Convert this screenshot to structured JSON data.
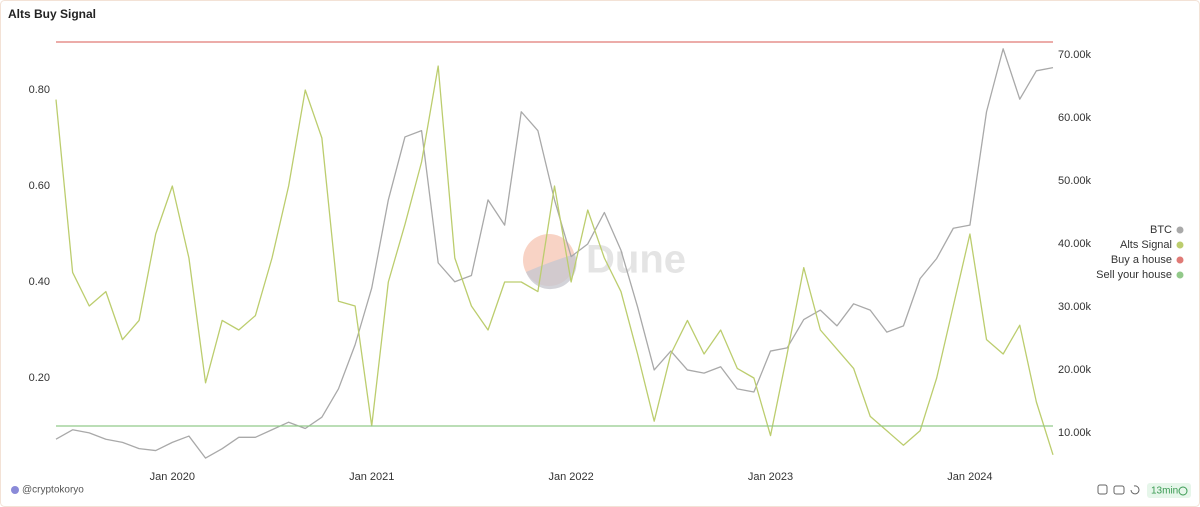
{
  "chart_data": {
    "type": "line",
    "title": "Alts Buy Signal",
    "watermark": "Dune",
    "x": [
      "2019-06",
      "2019-07",
      "2019-08",
      "2019-09",
      "2019-10",
      "2019-11",
      "2019-12",
      "2020-01",
      "2020-02",
      "2020-03",
      "2020-04",
      "2020-05",
      "2020-06",
      "2020-07",
      "2020-08",
      "2020-09",
      "2020-10",
      "2020-11",
      "2020-12",
      "2021-01",
      "2021-02",
      "2021-03",
      "2021-04",
      "2021-05",
      "2021-06",
      "2021-07",
      "2021-08",
      "2021-09",
      "2021-10",
      "2021-11",
      "2021-12",
      "2022-01",
      "2022-02",
      "2022-03",
      "2022-04",
      "2022-05",
      "2022-06",
      "2022-07",
      "2022-08",
      "2022-09",
      "2022-10",
      "2022-11",
      "2022-12",
      "2023-01",
      "2023-02",
      "2023-03",
      "2023-04",
      "2023-05",
      "2023-06",
      "2023-07",
      "2023-08",
      "2023-09",
      "2023-10",
      "2023-11",
      "2023-12",
      "2024-01",
      "2024-02",
      "2024-03",
      "2024-04",
      "2024-05",
      "2024-06"
    ],
    "xlim": [
      "2019-06",
      "2024-06"
    ],
    "xticks": [
      {
        "value": "2020-01",
        "label": "Jan 2020"
      },
      {
        "value": "2021-01",
        "label": "Jan 2021"
      },
      {
        "value": "2022-01",
        "label": "Jan 2022"
      },
      {
        "value": "2023-01",
        "label": "Jan 2023"
      },
      {
        "value": "2024-01",
        "label": "Jan 2024"
      }
    ],
    "ylim": [
      0.02,
      0.92
    ],
    "yticks": [
      {
        "value": 0.2,
        "label": "0.20"
      },
      {
        "value": 0.4,
        "label": "0.40"
      },
      {
        "value": 0.6,
        "label": "0.60"
      },
      {
        "value": 0.8,
        "label": "0.80"
      }
    ],
    "y2lim": [
      5000,
      73600
    ],
    "y2ticks": [
      {
        "value": 10000,
        "label": "10.00k"
      },
      {
        "value": 20000,
        "label": "20.00k"
      },
      {
        "value": 30000,
        "label": "30.00k"
      },
      {
        "value": 40000,
        "label": "40.00k"
      },
      {
        "value": 50000,
        "label": "50.00k"
      },
      {
        "value": 60000,
        "label": "60.00k"
      },
      {
        "value": 70000,
        "label": "70.00k"
      }
    ],
    "grid": false,
    "legend": "right",
    "series": [
      {
        "name": "BTC",
        "color": "#a9a9a9",
        "axis": "y2",
        "values": [
          9000,
          10500,
          10000,
          9000,
          8500,
          7500,
          7200,
          8500,
          9500,
          6000,
          7500,
          9300,
          9300,
          10500,
          11700,
          10700,
          12500,
          17000,
          24000,
          33000,
          47000,
          57000,
          58000,
          37000,
          34000,
          35000,
          47000,
          43000,
          61000,
          58000,
          47000,
          38000,
          40000,
          45000,
          39000,
          30000,
          20000,
          23000,
          20000,
          19500,
          20500,
          17000,
          16500,
          23000,
          23500,
          28000,
          29500,
          27000,
          30500,
          29500,
          26000,
          27000,
          34500,
          37700,
          42500,
          43000,
          61000,
          71000,
          63000,
          67500,
          68000
        ]
      },
      {
        "name": "Alts Signal",
        "color": "#bccd6e",
        "values": [
          0.78,
          0.42,
          0.35,
          0.38,
          0.28,
          0.32,
          0.5,
          0.6,
          0.45,
          0.19,
          0.32,
          0.3,
          0.33,
          0.45,
          0.6,
          0.8,
          0.7,
          0.36,
          0.35,
          0.1,
          0.4,
          0.52,
          0.65,
          0.85,
          0.45,
          0.35,
          0.3,
          0.4,
          0.4,
          0.38,
          0.6,
          0.4,
          0.55,
          0.45,
          0.38,
          0.25,
          0.11,
          0.25,
          0.32,
          0.25,
          0.3,
          0.22,
          0.2,
          0.08,
          0.25,
          0.43,
          0.3,
          0.26,
          0.22,
          0.12,
          0.09,
          0.06,
          0.09,
          0.2,
          0.35,
          0.5,
          0.28,
          0.25,
          0.31,
          0.15,
          0.04
        ]
      },
      {
        "name": "Buy a house",
        "color": "#e07a76",
        "values": [
          0.9,
          0.9,
          0.9,
          0.9,
          0.9,
          0.9,
          0.9,
          0.9,
          0.9,
          0.9,
          0.9,
          0.9,
          0.9,
          0.9,
          0.9,
          0.9,
          0.9,
          0.9,
          0.9,
          0.9,
          0.9,
          0.9,
          0.9,
          0.9,
          0.9,
          0.9,
          0.9,
          0.9,
          0.9,
          0.9,
          0.9,
          0.9,
          0.9,
          0.9,
          0.9,
          0.9,
          0.9,
          0.9,
          0.9,
          0.9,
          0.9,
          0.9,
          0.9,
          0.9,
          0.9,
          0.9,
          0.9,
          0.9,
          0.9,
          0.9,
          0.9,
          0.9,
          0.9,
          0.9,
          0.9,
          0.9,
          0.9,
          0.9,
          0.9,
          0.9,
          0.9
        ]
      },
      {
        "name": "Sell your house",
        "color": "#92c98a",
        "values": [
          0.1,
          0.1,
          0.1,
          0.1,
          0.1,
          0.1,
          0.1,
          0.1,
          0.1,
          0.1,
          0.1,
          0.1,
          0.1,
          0.1,
          0.1,
          0.1,
          0.1,
          0.1,
          0.1,
          0.1,
          0.1,
          0.1,
          0.1,
          0.1,
          0.1,
          0.1,
          0.1,
          0.1,
          0.1,
          0.1,
          0.1,
          0.1,
          0.1,
          0.1,
          0.1,
          0.1,
          0.1,
          0.1,
          0.1,
          0.1,
          0.1,
          0.1,
          0.1,
          0.1,
          0.1,
          0.1,
          0.1,
          0.1,
          0.1,
          0.1,
          0.1,
          0.1,
          0.1,
          0.1,
          0.1,
          0.1,
          0.1,
          0.1,
          0.1,
          0.1,
          0.1
        ]
      }
    ]
  },
  "footer": {
    "author": "@cryptokoryo",
    "badge": "13min"
  }
}
